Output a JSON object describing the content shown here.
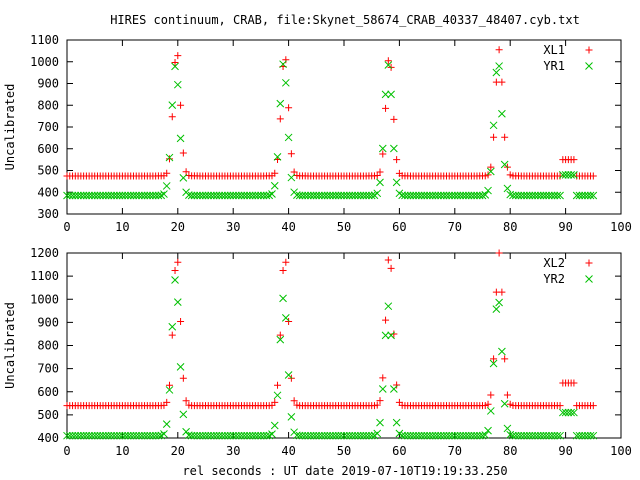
{
  "figure": {
    "title": "HIRES continuum, CRAB, file:Skynet_58674_CRAB_40337_48407.cyb.txt",
    "xlabel": "rel seconds : UT date 2019-07-10T19:19:33.250"
  },
  "colors": {
    "red": "#ff0000",
    "green": "#00c000",
    "axis": "#000000",
    "background": "#ffffff"
  },
  "chart_data": [
    {
      "type": "scatter",
      "ylabel": "Uncalibrated",
      "xlim": [
        0,
        100
      ],
      "ylim": [
        300,
        1100
      ],
      "xticks": [
        0,
        10,
        20,
        30,
        40,
        50,
        60,
        70,
        80,
        90,
        100
      ],
      "yticks": [
        300,
        400,
        500,
        600,
        700,
        800,
        900,
        1000,
        1100
      ],
      "legend_position": "top-right",
      "sample_spacing": 0.5,
      "x_range": [
        0,
        95
      ],
      "series": [
        {
          "name": "XL1",
          "marker": "plus",
          "color": "#ff0000",
          "baseline": 475,
          "peaks": [
            {
              "center": 19.8,
              "amplitude": 580,
              "width": 0.65
            },
            {
              "center": 39.3,
              "amplitude": 560,
              "width": 0.65
            },
            {
              "center": 58.2,
              "amplitude": 555,
              "width": 0.65
            },
            {
              "center": 78.0,
              "amplitude": 580,
              "width": 0.65
            }
          ],
          "steps": [
            {
              "start": 89.5,
              "end": 91.5,
              "level": 550
            }
          ]
        },
        {
          "name": "YR1",
          "marker": "cross",
          "color": "#00c000",
          "baseline": 385,
          "peaks": [
            {
              "center": 19.6,
              "amplitude": 600,
              "width": 0.7
            },
            {
              "center": 39.1,
              "amplitude": 610,
              "width": 0.7
            },
            {
              "center": 58.0,
              "amplitude": 600,
              "width": 0.7
            },
            {
              "center": 77.8,
              "amplitude": 620,
              "width": 0.7
            }
          ],
          "steps": [
            {
              "start": 89.5,
              "end": 91.5,
              "level": 480
            }
          ]
        }
      ]
    },
    {
      "type": "scatter",
      "ylabel": "Uncalibrated",
      "xlim": [
        0,
        100
      ],
      "ylim": [
        400,
        1200
      ],
      "xticks": [
        0,
        10,
        20,
        30,
        40,
        50,
        60,
        70,
        80,
        90,
        100
      ],
      "yticks": [
        400,
        500,
        600,
        700,
        800,
        900,
        1000,
        1100,
        1200
      ],
      "legend_position": "top-right",
      "sample_spacing": 0.5,
      "x_range": [
        0,
        95
      ],
      "series": [
        {
          "name": "XL2",
          "marker": "plus",
          "color": "#ff0000",
          "baseline": 540,
          "peaks": [
            {
              "center": 19.8,
              "amplitude": 650,
              "width": 0.65
            },
            {
              "center": 39.3,
              "amplitude": 650,
              "width": 0.65
            },
            {
              "center": 58.2,
              "amplitude": 660,
              "width": 0.65
            },
            {
              "center": 78.0,
              "amplitude": 660,
              "width": 0.65
            }
          ],
          "steps": [
            {
              "start": 89.5,
              "end": 91.5,
              "level": 638
            }
          ]
        },
        {
          "name": "YR2",
          "marker": "cross",
          "color": "#00c000",
          "baseline": 410,
          "peaks": [
            {
              "center": 19.6,
              "amplitude": 680,
              "width": 0.7
            },
            {
              "center": 39.1,
              "amplitude": 600,
              "width": 0.7
            },
            {
              "center": 58.0,
              "amplitude": 560,
              "width": 0.7
            },
            {
              "center": 77.8,
              "amplitude": 600,
              "width": 0.7
            }
          ],
          "steps": [
            {
              "start": 89.5,
              "end": 91.5,
              "level": 510
            }
          ]
        }
      ]
    }
  ]
}
